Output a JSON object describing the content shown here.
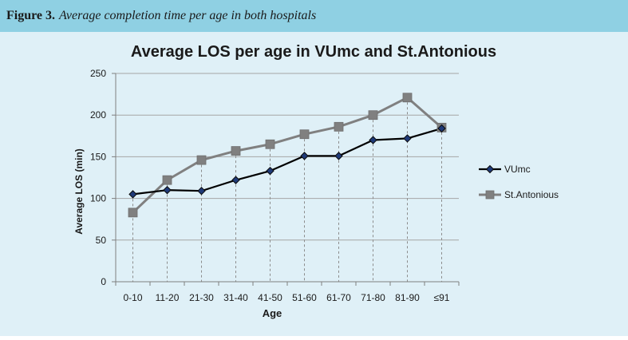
{
  "caption": {
    "label": "Figure 3.",
    "text": "Average completion time per age in both hospitals"
  },
  "chart_data": {
    "type": "line",
    "title": "Average LOS per age in VUmc and St.Antonious",
    "xlabel": "Age",
    "ylabel": "Average LOS (min)",
    "ylim": [
      0,
      250
    ],
    "yticks": [
      0,
      50,
      100,
      150,
      200,
      250
    ],
    "grid": "horizontal",
    "drop_lines": true,
    "legend_position": "right",
    "categories": [
      "0-10",
      "11-20",
      "21-30",
      "31-40",
      "41-50",
      "51-60",
      "61-70",
      "71-80",
      "81-90",
      "≤91"
    ],
    "series": [
      {
        "name": "VUmc",
        "values": [
          105,
          110,
          109,
          122,
          133,
          151,
          151,
          170,
          172,
          184
        ],
        "color": "#000000",
        "marker": "diamond",
        "marker_color": "#1f3a78"
      },
      {
        "name": "St.Antonious",
        "values": [
          83,
          122,
          146,
          157,
          165,
          177,
          186,
          200,
          221,
          185
        ],
        "color": "#808080",
        "marker": "square",
        "marker_color": "#808080"
      }
    ]
  }
}
